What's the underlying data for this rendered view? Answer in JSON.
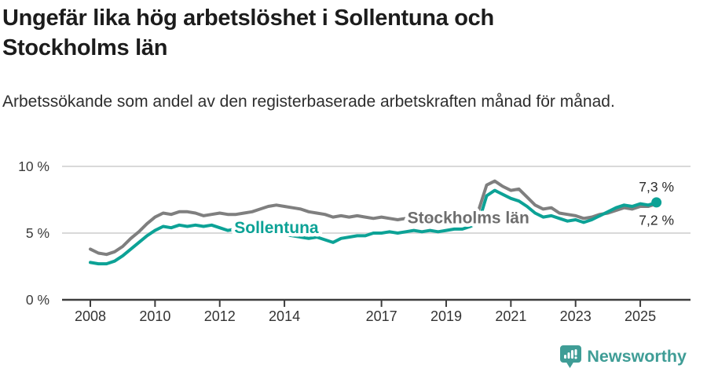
{
  "header": {
    "title": "Ungefär lika hög arbetslöshet i Sollentuna och Stockholms län",
    "subtitle": "Arbetssökande som andel av den registerbaserade arbetskraften månad för månad."
  },
  "chart_data": {
    "type": "line",
    "title": "Ungefär lika hög arbetslöshet i Sollentuna och Stockholms län",
    "xlabel": "",
    "ylabel": "",
    "x_unit": "year (monthly series, quarterly sampled)",
    "ylim": [
      0,
      10
    ],
    "grid": "horizontal-light",
    "legend": "inline-labels",
    "x": [
      2008.0,
      2008.25,
      2008.5,
      2008.75,
      2009.0,
      2009.25,
      2009.5,
      2009.75,
      2010.0,
      2010.25,
      2010.5,
      2010.75,
      2011.0,
      2011.25,
      2011.5,
      2011.75,
      2012.0,
      2012.25,
      2012.5,
      2012.75,
      2013.0,
      2013.25,
      2013.5,
      2013.75,
      2014.0,
      2014.25,
      2014.5,
      2014.75,
      2015.0,
      2015.25,
      2015.5,
      2015.75,
      2016.0,
      2016.25,
      2016.5,
      2016.75,
      2017.0,
      2017.25,
      2017.5,
      2017.75,
      2018.0,
      2018.25,
      2018.5,
      2018.75,
      2019.0,
      2019.25,
      2019.5,
      2019.75,
      2020.0,
      2020.25,
      2020.5,
      2020.75,
      2021.0,
      2021.25,
      2021.5,
      2021.75,
      2022.0,
      2022.25,
      2022.5,
      2022.75,
      2023.0,
      2023.25,
      2023.5,
      2023.75,
      2024.0,
      2024.25,
      2024.5,
      2024.75,
      2025.0,
      2025.25,
      2025.5
    ],
    "series": [
      {
        "name": "Stockholms län",
        "color": "#7f7f7f",
        "label_color": "#6e6e6e",
        "end_label": "7,2 %",
        "end_value": 7.2,
        "end_dot": false,
        "end_label_dy": 27,
        "label_anchor": {
          "x": 2017.8,
          "y": 5.75
        },
        "values": [
          3.8,
          3.5,
          3.4,
          3.6,
          4.0,
          4.6,
          5.1,
          5.7,
          6.2,
          6.5,
          6.4,
          6.6,
          6.6,
          6.5,
          6.3,
          6.4,
          6.5,
          6.4,
          6.4,
          6.5,
          6.6,
          6.8,
          7.0,
          7.1,
          7.0,
          6.9,
          6.8,
          6.6,
          6.5,
          6.4,
          6.2,
          6.3,
          6.2,
          6.3,
          6.2,
          6.1,
          6.2,
          6.1,
          6.0,
          6.1,
          6.1,
          6.0,
          6.1,
          6.0,
          6.1,
          6.1,
          6.2,
          6.4,
          6.7,
          8.6,
          8.9,
          8.5,
          8.2,
          8.3,
          7.7,
          7.1,
          6.8,
          6.9,
          6.5,
          6.4,
          6.3,
          6.1,
          6.2,
          6.4,
          6.5,
          6.7,
          6.9,
          6.8,
          7.0,
          7.0,
          7.2
        ]
      },
      {
        "name": "Sollentuna",
        "color": "#0ca296",
        "label_color": "#0ca296",
        "end_label": "7,3 %",
        "end_value": 7.3,
        "end_dot": true,
        "end_label_dy": -14,
        "label_anchor": {
          "x": 2012.45,
          "y": 5.0
        },
        "values": [
          2.8,
          2.7,
          2.7,
          2.9,
          3.3,
          3.8,
          4.3,
          4.8,
          5.2,
          5.5,
          5.4,
          5.6,
          5.5,
          5.6,
          5.5,
          5.6,
          5.4,
          5.2,
          5.3,
          5.2,
          5.1,
          5.0,
          4.9,
          5.0,
          4.9,
          4.8,
          4.7,
          4.6,
          4.7,
          4.5,
          4.3,
          4.6,
          4.7,
          4.8,
          4.8,
          5.0,
          5.0,
          5.1,
          5.0,
          5.1,
          5.2,
          5.1,
          5.2,
          5.1,
          5.2,
          5.3,
          5.3,
          5.5,
          5.8,
          7.8,
          8.2,
          7.9,
          7.6,
          7.4,
          7.0,
          6.5,
          6.2,
          6.3,
          6.1,
          5.9,
          6.0,
          5.8,
          6.0,
          6.3,
          6.6,
          6.9,
          7.1,
          7.0,
          7.2,
          7.1,
          7.3
        ]
      }
    ],
    "yticks": [
      {
        "value": 0,
        "label": "0 %"
      },
      {
        "value": 5,
        "label": "5 %"
      },
      {
        "value": 10,
        "label": "10 %"
      }
    ],
    "xticks": [
      {
        "value": 2008,
        "label": "2008"
      },
      {
        "value": 2010,
        "label": "2010"
      },
      {
        "value": 2012,
        "label": "2012"
      },
      {
        "value": 2014,
        "label": "2014"
      },
      {
        "value": 2017,
        "label": "2017"
      },
      {
        "value": 2019,
        "label": "2019"
      },
      {
        "value": 2021,
        "label": "2021"
      },
      {
        "value": 2023,
        "label": "2023"
      },
      {
        "value": 2025,
        "label": "2025"
      }
    ]
  },
  "footer": {
    "brand": "Newsworthy"
  },
  "colors": {
    "accent_teal": "#0ca296",
    "line_gray": "#7f7f7f",
    "logo_teal": "#3f9d96",
    "grid": "#d9d9d9",
    "axis": "#3d3d3d",
    "tick_text": "#3b3b3b",
    "value_text": "#2b2b2b",
    "title_text": "#1c1c1c"
  }
}
